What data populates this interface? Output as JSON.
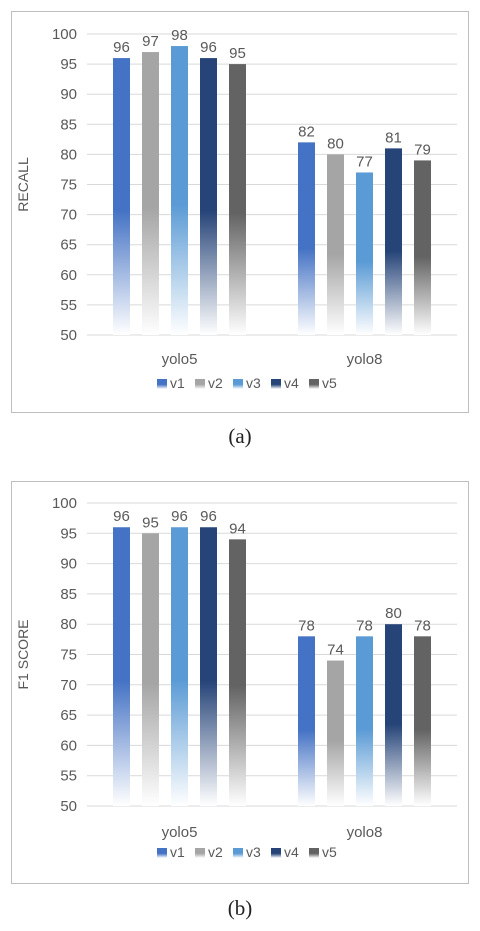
{
  "colors": {
    "v1": "#4472c4",
    "v2": "#a5a5a5",
    "v3": "#5b9bd5",
    "v4": "#264478",
    "v5": "#636363",
    "grid": "#d9d9d9",
    "text": "#595959"
  },
  "chart_data": [
    {
      "type": "bar",
      "caption": "(a)",
      "ylabel": "RECALL",
      "xlabel": "",
      "categories": [
        "yolo5",
        "yolo8"
      ],
      "series": [
        {
          "name": "v1",
          "values": [
            96,
            82
          ]
        },
        {
          "name": "v2",
          "values": [
            97,
            80
          ]
        },
        {
          "name": "v3",
          "values": [
            98,
            77
          ]
        },
        {
          "name": "v4",
          "values": [
            96,
            81
          ]
        },
        {
          "name": "v5",
          "values": [
            95,
            79
          ]
        }
      ],
      "ylim": [
        50,
        100
      ],
      "yticks": [
        50,
        55,
        60,
        65,
        70,
        75,
        80,
        85,
        90,
        95,
        100
      ],
      "grid": true,
      "legend": "bottom",
      "fill": "gradient-fading-to-white"
    },
    {
      "type": "bar",
      "caption": "(b)",
      "ylabel": "F1 SCORE",
      "xlabel": "",
      "categories": [
        "yolo5",
        "yolo8"
      ],
      "series": [
        {
          "name": "v1",
          "values": [
            96,
            78
          ]
        },
        {
          "name": "v2",
          "values": [
            95,
            74
          ]
        },
        {
          "name": "v3",
          "values": [
            96,
            78
          ]
        },
        {
          "name": "v4",
          "values": [
            96,
            80
          ]
        },
        {
          "name": "v5",
          "values": [
            94,
            78
          ]
        }
      ],
      "ylim": [
        50,
        100
      ],
      "yticks": [
        50,
        55,
        60,
        65,
        70,
        75,
        80,
        85,
        90,
        95,
        100
      ],
      "grid": true,
      "legend": "bottom",
      "fill": "gradient-fading-to-white"
    }
  ]
}
